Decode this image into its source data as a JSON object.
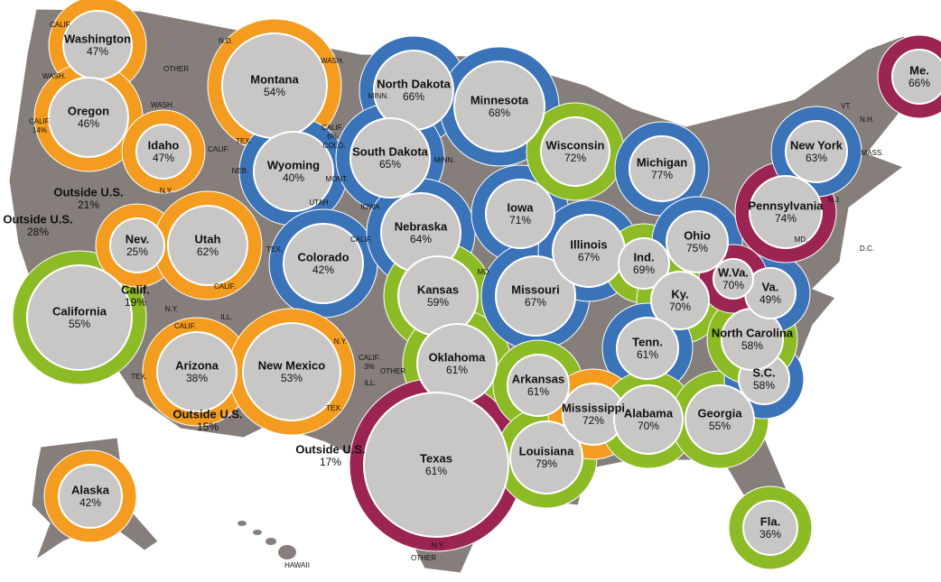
{
  "states": [
    {
      "name": "Washington",
      "share": "47%"
    },
    {
      "name": "Oregon",
      "share": "46%"
    },
    {
      "name": "California",
      "share": "55%"
    },
    {
      "name": "Outside U.S.",
      "share": "28%"
    },
    {
      "name": "Outside U.S.",
      "share": "21%"
    },
    {
      "name": "Idaho",
      "share": "47%"
    },
    {
      "name": "Nev.",
      "share": "25%"
    },
    {
      "name": "Calif.",
      "share": "19%"
    },
    {
      "name": "Utah",
      "share": "62%"
    },
    {
      "name": "Montana",
      "share": "54%"
    },
    {
      "name": "Wyoming",
      "share": "40%"
    },
    {
      "name": "Colorado",
      "share": "42%"
    },
    {
      "name": "Arizona",
      "share": "38%"
    },
    {
      "name": "New Mexico",
      "share": "53%"
    },
    {
      "name": "Outside U.S.",
      "share": "15%"
    },
    {
      "name": "North Dakota",
      "share": "66%"
    },
    {
      "name": "South Dakota",
      "share": "65%"
    },
    {
      "name": "Nebraska",
      "share": "64%"
    },
    {
      "name": "Kansas",
      "share": "59%"
    },
    {
      "name": "Oklahoma",
      "share": "61%"
    },
    {
      "name": "Texas",
      "share": "61%"
    },
    {
      "name": "Outside U.S.",
      "share": "17%"
    },
    {
      "name": "Minnesota",
      "share": "68%"
    },
    {
      "name": "Iowa",
      "share": "71%"
    },
    {
      "name": "Missouri",
      "share": "67%"
    },
    {
      "name": "Arkansas",
      "share": "61%"
    },
    {
      "name": "Louisiana",
      "share": "79%"
    },
    {
      "name": "Wisconsin",
      "share": "72%"
    },
    {
      "name": "Illinois",
      "share": "67%"
    },
    {
      "name": "Michigan",
      "share": "77%"
    },
    {
      "name": "Ind.",
      "share": "69%"
    },
    {
      "name": "Ohio",
      "share": "75%"
    },
    {
      "name": "Ky.",
      "share": "70%"
    },
    {
      "name": "Tenn.",
      "share": "61%"
    },
    {
      "name": "Mississippi",
      "share": "72%"
    },
    {
      "name": "Alabama",
      "share": "70%"
    },
    {
      "name": "Georgia",
      "share": "55%"
    },
    {
      "name": "Fla.",
      "share": "36%"
    },
    {
      "name": "S.C.",
      "share": "58%"
    },
    {
      "name": "North Carolina",
      "share": "58%"
    },
    {
      "name": "Va.",
      "share": "49%"
    },
    {
      "name": "W.Va.",
      "share": "70%"
    },
    {
      "name": "Pennsylvania",
      "share": "74%"
    },
    {
      "name": "New York",
      "share": "63%"
    },
    {
      "name": "Me.",
      "share": "66%"
    },
    {
      "name": "Alaska",
      "share": "42%"
    }
  ],
  "small_labels": [
    {
      "text": "CALIF."
    },
    {
      "text": "WASH."
    },
    {
      "text": "CALIF.",
      "share": "14%"
    },
    {
      "text": "OTHER"
    },
    {
      "text": "N.D."
    },
    {
      "text": "WASH."
    },
    {
      "text": "WASH."
    },
    {
      "text": "CALIF.",
      "share": "6%"
    },
    {
      "text": "COLO."
    },
    {
      "text": "TEX."
    },
    {
      "text": "NEB."
    },
    {
      "text": "MONT."
    },
    {
      "text": "CALIF."
    },
    {
      "text": "UTAH"
    },
    {
      "text": "N.Y."
    },
    {
      "text": "IOWA"
    },
    {
      "text": "MINN."
    },
    {
      "text": "MINN."
    },
    {
      "text": "TEX."
    },
    {
      "text": "CALIF."
    },
    {
      "text": "CALIF."
    },
    {
      "text": "N.Y."
    },
    {
      "text": "CALIF."
    },
    {
      "text": "ILL."
    },
    {
      "text": "TEX."
    },
    {
      "text": "N.Y."
    },
    {
      "text": "CALIF.",
      "share": "3%"
    },
    {
      "text": "OTHER"
    },
    {
      "text": "ILL."
    },
    {
      "text": "TEX."
    },
    {
      "text": "MO."
    },
    {
      "text": "N.Y."
    },
    {
      "text": "OTHER"
    },
    {
      "text": "HAWAII"
    },
    {
      "text": "VT."
    },
    {
      "text": "N.H."
    },
    {
      "text": "MASS."
    },
    {
      "text": "N.J."
    },
    {
      "text": "MD."
    },
    {
      "text": "D.C."
    }
  ]
}
